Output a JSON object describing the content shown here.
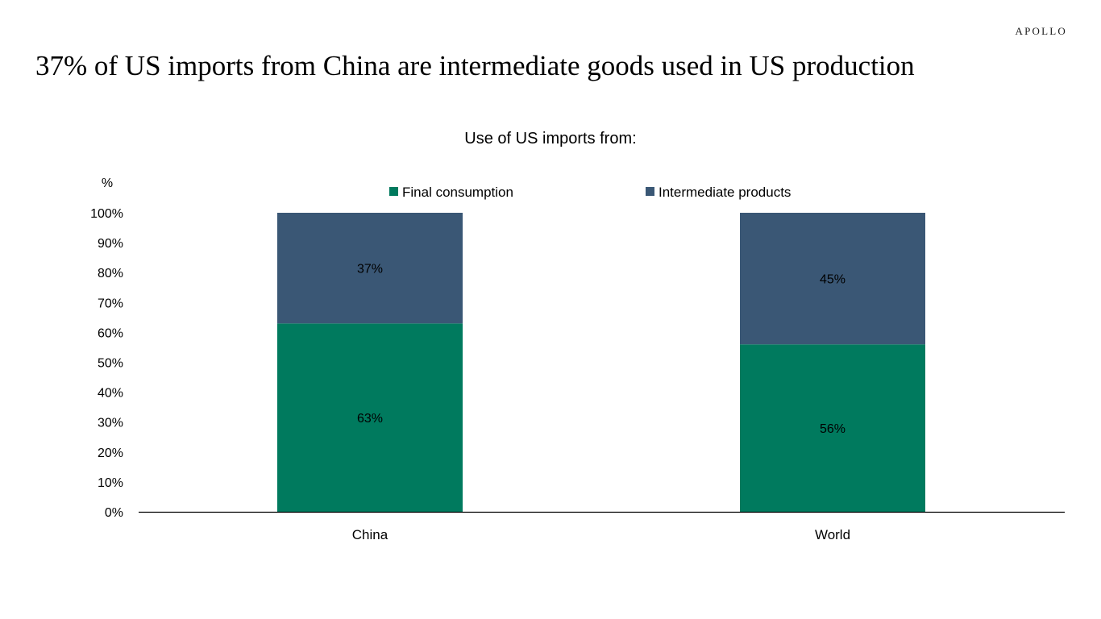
{
  "brand": "APOLLO",
  "headline": "37% of US imports from China are intermediate goods used in US production",
  "chart_data": {
    "type": "bar",
    "stacked": true,
    "title": "Use of US imports from:",
    "ylabel": "%",
    "xlabel": "",
    "ylim": [
      0,
      100
    ],
    "yticks": [
      "0%",
      "10%",
      "20%",
      "30%",
      "40%",
      "50%",
      "60%",
      "70%",
      "80%",
      "90%",
      "100%"
    ],
    "categories": [
      "China",
      "World"
    ],
    "series": [
      {
        "name": "Final consumption",
        "color": "#007A5E",
        "values": [
          63,
          56
        ],
        "labels": [
          "63%",
          "56%"
        ]
      },
      {
        "name": "Intermediate products",
        "color": "#3A5775",
        "values": [
          37,
          45
        ],
        "labels": [
          "37%",
          "45%"
        ]
      }
    ],
    "grid": false,
    "legend": "top-center"
  }
}
